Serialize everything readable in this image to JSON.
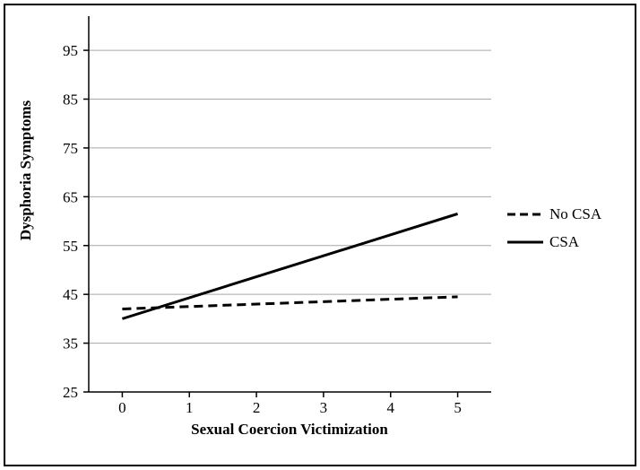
{
  "chart_data": {
    "type": "line",
    "title": "",
    "xlabel": "Sexual Coercion Victimization",
    "ylabel": "Dysphoria Symptoms",
    "x": [
      0,
      5
    ],
    "series": [
      {
        "name": "No CSA",
        "values": [
          42,
          44.5
        ],
        "style": "dashed",
        "color": "#000000"
      },
      {
        "name": "CSA",
        "values": [
          40,
          61.5
        ],
        "style": "solid",
        "color": "#000000"
      }
    ],
    "xticks": [
      0,
      1,
      2,
      3,
      4,
      5
    ],
    "yticks": [
      25,
      35,
      45,
      55,
      65,
      75,
      85,
      95
    ],
    "xlim": [
      -0.5,
      5.5
    ],
    "ylim": [
      25,
      102
    ],
    "grid": "horizontal",
    "grid_color": "#a8a8a8",
    "axis_color": "#000000",
    "line_width": 3,
    "legend_position": "right"
  }
}
